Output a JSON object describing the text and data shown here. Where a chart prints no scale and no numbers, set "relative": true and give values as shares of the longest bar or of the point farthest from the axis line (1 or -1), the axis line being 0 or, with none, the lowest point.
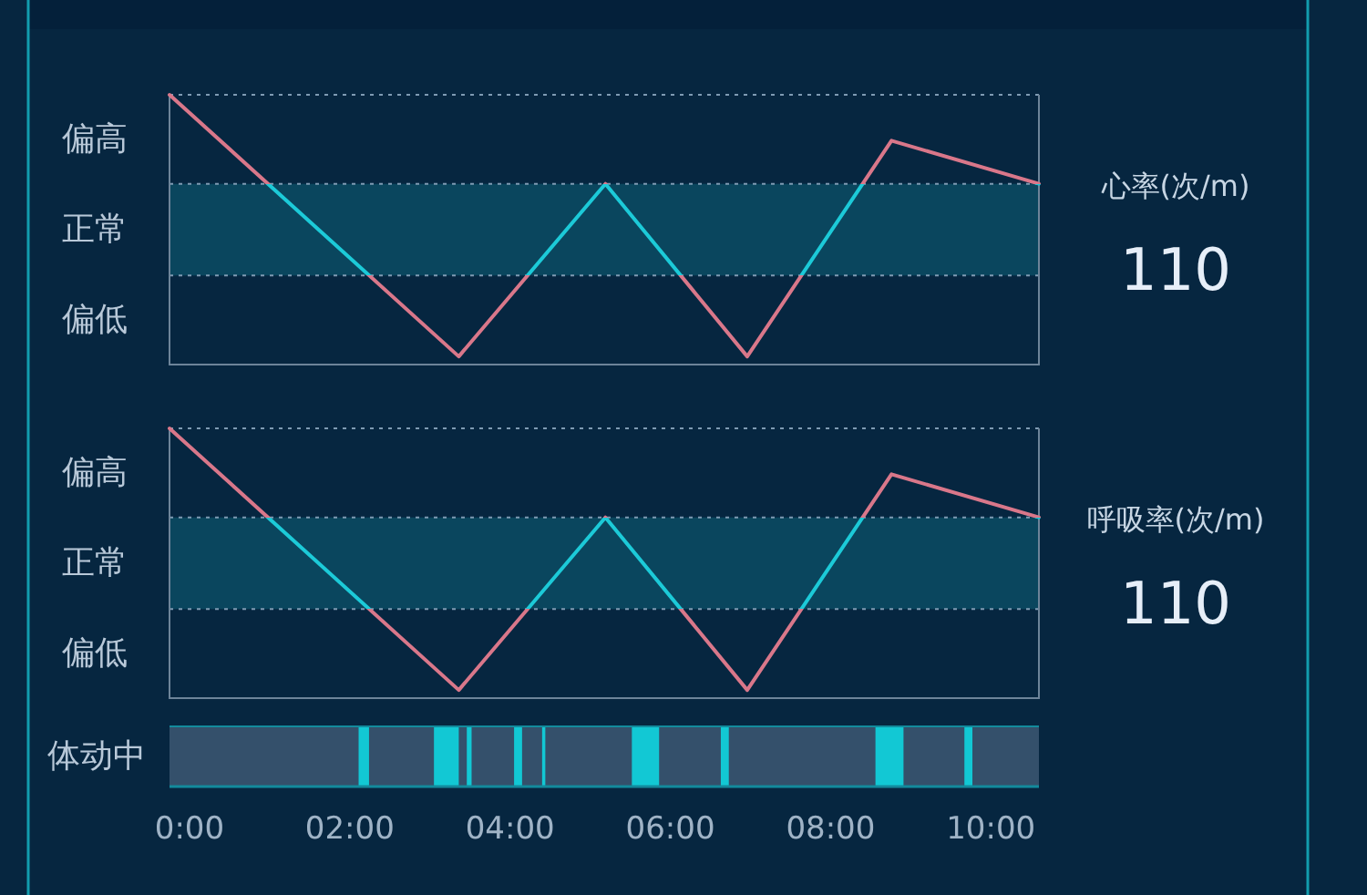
{
  "chart_data": [
    {
      "type": "line",
      "relative": true,
      "x": [
        -0.25,
        3.36,
        5.19,
        6.96,
        8.76,
        10.6
      ],
      "series": [
        {
          "color": "#d9778a",
          "values": [
            1,
            0.03,
            0.67,
            0.03,
            0.83,
            0.67
          ]
        }
      ],
      "xlim": [
        -0.25,
        10.6
      ],
      "bands": [
        {
          "axis": "y",
          "from": 0.33,
          "to": 0.67,
          "color": "#1ccad8"
        }
      ],
      "ref_lines": [
        {
          "axis": "y",
          "value": 0.33,
          "color": "#7f9bb3",
          "line_style": "dotted"
        },
        {
          "axis": "y",
          "value": 0.67,
          "color": "#7f9bb3",
          "line_style": "dotted"
        },
        {
          "axis": "y",
          "value": 1,
          "color": "#7f9bb3",
          "line_style": "dotted"
        }
      ],
      "annotations": [
        "偏高",
        "正常",
        "偏低",
        "心率(次/m)",
        "110"
      ]
    },
    {
      "type": "line",
      "relative": true,
      "x": [
        -0.25,
        3.36,
        5.19,
        6.96,
        8.76,
        10.6
      ],
      "series": [
        {
          "color": "#d9778a",
          "values": [
            1,
            0.03,
            0.67,
            0.03,
            0.83,
            0.67
          ]
        }
      ],
      "xlim": [
        -0.25,
        10.6
      ],
      "bands": [
        {
          "axis": "y",
          "from": 0.33,
          "to": 0.67,
          "color": "#1ccad8"
        }
      ],
      "ref_lines": [
        {
          "axis": "y",
          "value": 0.33,
          "color": "#7f9bb3",
          "line_style": "dotted"
        },
        {
          "axis": "y",
          "value": 0.67,
          "color": "#7f9bb3",
          "line_style": "dotted"
        },
        {
          "axis": "y",
          "value": 1,
          "color": "#7f9bb3",
          "line_style": "dotted"
        }
      ],
      "annotations": [
        "偏高",
        "正常",
        "偏低",
        "呼吸率(次/m)",
        "110"
      ]
    },
    {
      "type": "bar",
      "orientation": "horizontal",
      "categories": [
        "体动中"
      ],
      "base": [
        -0.25
      ],
      "values": [
        10.85
      ],
      "color": "#34506b",
      "xlim": [
        -0.25,
        10.6
      ],
      "xticks": [
        {
          "value": 0,
          "label": "0:00"
        },
        {
          "value": 2,
          "label": "02:00"
        },
        {
          "value": 4,
          "label": "04:00"
        },
        {
          "value": 6,
          "label": "06:00"
        },
        {
          "value": 8,
          "label": "08:00"
        },
        {
          "value": 10,
          "label": "10:00"
        }
      ],
      "bands": [
        {
          "axis": "x",
          "from": 2.11,
          "to": 2.24,
          "color": "#12c8d4"
        },
        {
          "axis": "x",
          "from": 3.05,
          "to": 3.36,
          "color": "#12c8d4"
        },
        {
          "axis": "x",
          "from": 3.46,
          "to": 3.52,
          "color": "#12c8d4"
        },
        {
          "axis": "x",
          "from": 4.05,
          "to": 4.15,
          "color": "#12c8d4"
        },
        {
          "axis": "x",
          "from": 4.4,
          "to": 4.44,
          "color": "#12c8d4"
        },
        {
          "axis": "x",
          "from": 5.52,
          "to": 5.86,
          "color": "#12c8d4"
        },
        {
          "axis": "x",
          "from": 6.63,
          "to": 6.73,
          "color": "#12c8d4"
        },
        {
          "axis": "x",
          "from": 8.56,
          "to": 8.91,
          "color": "#12c8d4"
        },
        {
          "axis": "x",
          "from": 9.67,
          "to": 9.77,
          "color": "#12c8d4"
        }
      ]
    }
  ]
}
